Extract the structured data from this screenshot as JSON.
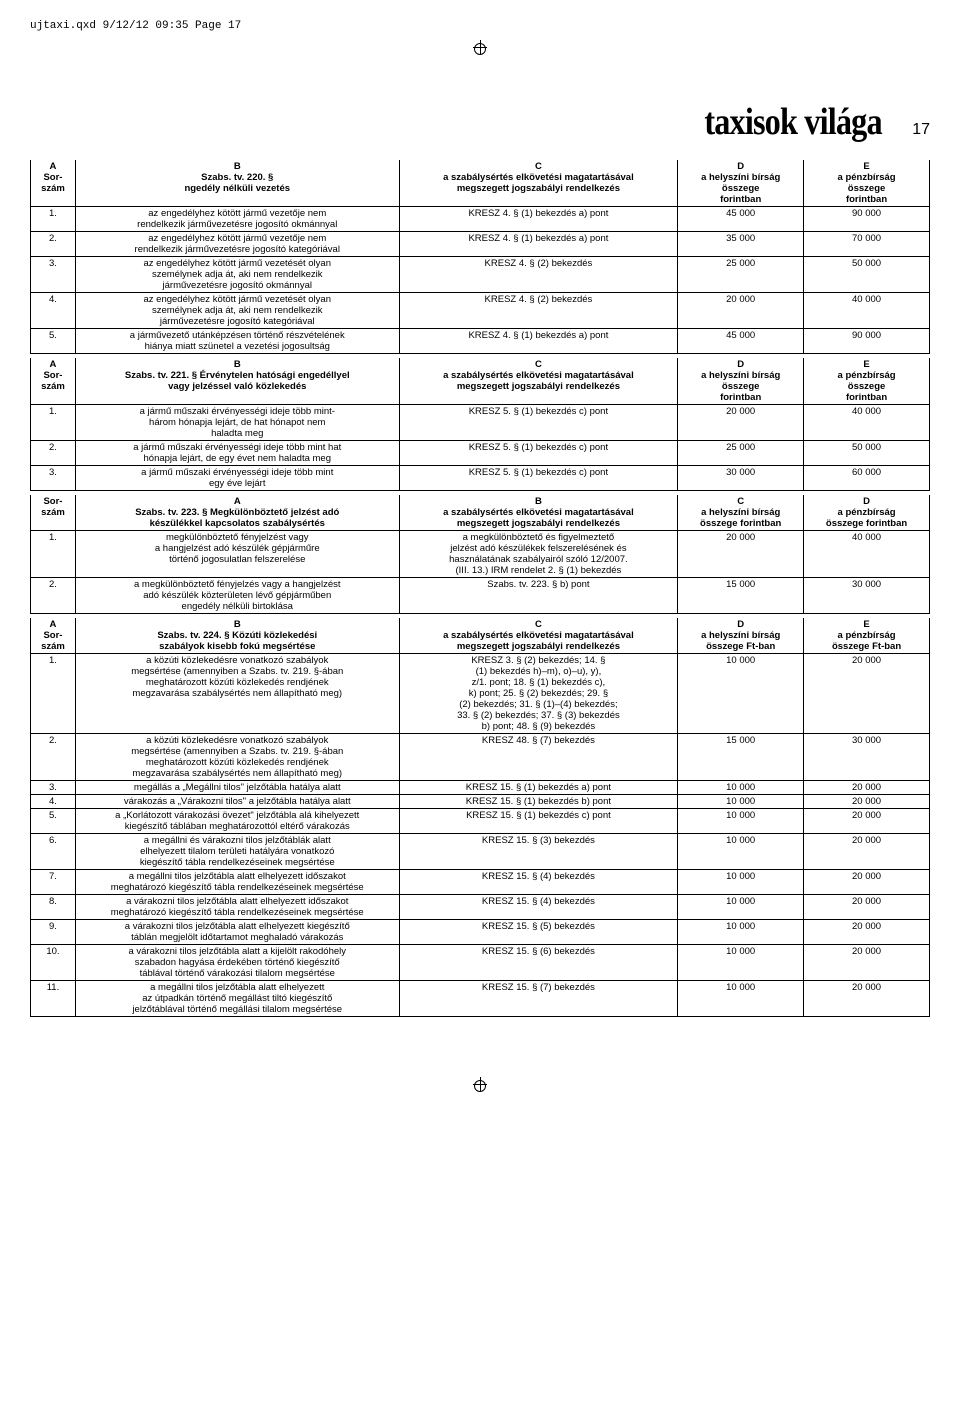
{
  "file_header": "ujtaxi.qxd  9/12/12 09:35  Page 17",
  "magazine_title": "taxisok világa",
  "page_number": "17",
  "table1": {
    "headers": {
      "A": "A\nSor-\nszám",
      "B": "B\nSzabs. tv. 220. §\nngedély nélküli vezetés",
      "C": "C\na szabálysértés elkövetési magatartásával\nmegszegett jogszabályi rendelkezés",
      "D": "D\na helyszíni bírság\nösszege\nforintban",
      "E": "E\na pénzbírság\nösszege\nforintban"
    },
    "rows": [
      {
        "n": "1.",
        "b": "az engedélyhez kötött jármű vezetője nem\nrendelkezik járművezetésre jogosító okmánnyal",
        "c": "KRESZ 4. § (1) bekezdés a) pont",
        "d": "45 000",
        "e": "90 000"
      },
      {
        "n": "2.",
        "b": "az engedélyhez kötött jármű vezetője nem\nrendelkezik járművezetésre jogosító kategóriával",
        "c": "KRESZ 4. § (1) bekezdés a) pont",
        "d": "35 000",
        "e": "70 000"
      },
      {
        "n": "3.",
        "b": "az engedélyhez kötött jármű vezetését olyan\nszemélynek adja át, aki nem rendelkezik\njárművezetésre jogosító okmánnyal",
        "c": "KRESZ 4. § (2) bekezdés",
        "d": "25 000",
        "e": "50 000"
      },
      {
        "n": "4.",
        "b": "az engedélyhez kötött jármű vezetését olyan\nszemélynek adja át, aki nem rendelkezik\njárművezetésre jogosító kategóriával",
        "c": "KRESZ 4. § (2) bekezdés",
        "d": "20 000",
        "e": "40 000"
      },
      {
        "n": "5.",
        "b": "a járművezető utánképzésen történő részvételének\nhiánya miatt szünetel a vezetési jogosultság",
        "c": "KRESZ 4. § (1) bekezdés a) pont",
        "d": "45 000",
        "e": "90 000"
      }
    ]
  },
  "table2": {
    "headers": {
      "A": "A\nSor-\nszám",
      "B": "B\nSzabs. tv. 221. § Érvénytelen hatósági engedéllyel\nvagy jelzéssel való közlekedés",
      "C": "C\na szabálysértés elkövetési magatartásával\nmegszegett jogszabályi rendelkezés",
      "D": "D\na helyszíni bírság\nösszege\nforintban",
      "E": "E\na pénzbírság\nösszege\nforintban"
    },
    "rows": [
      {
        "n": "1.",
        "b": "a jármű műszaki érvényességi ideje több mint-\nhárom hónapja lejárt, de hat hónapot nem\nhaladta meg",
        "c": "KRESZ 5. § (1) bekezdés c) pont",
        "d": "20 000",
        "e": "40 000"
      },
      {
        "n": "2.",
        "b": "a jármű műszaki érvényességi ideje több mint hat\nhónapja lejárt, de egy évet nem haladta meg",
        "c": "KRESZ 5. § (1) bekezdés c) pont",
        "d": "25 000",
        "e": "50 000"
      },
      {
        "n": "3.",
        "b": "a jármű műszaki érvényességi ideje több mint\negy éve lejárt",
        "c": "KRESZ 5. § (1) bekezdés c) pont",
        "d": "30 000",
        "e": "60 000"
      }
    ]
  },
  "table3": {
    "headers": {
      "A": "Sor-\nszám",
      "B": "A\nSzabs. tv. 223. § Megkülönböztető jelzést adó\nkészülékkel kapcsolatos szabálysértés",
      "C": "B\na szabálysértés elkövetési magatartásával\nmegszegett jogszabályi rendelkezés",
      "D": "C\na helyszíni bírság\nösszege forintban",
      "E": "D\na pénzbírság\nösszege forintban"
    },
    "rows": [
      {
        "n": "1.",
        "b": "megkülönböztető fényjelzést vagy\na hangjelzést adó készülék gépjárműre\ntörténő jogosulatlan felszerelése",
        "c": "a megkülönböztető és figyelmeztető\njelzést adó készülékek felszerelésének és\nhasználatának szabályairól szóló 12/2007.\n(III. 13.) IRM rendelet 2. § (1) bekezdés",
        "d": "20 000",
        "e": "40 000"
      },
      {
        "n": "2.",
        "b": "a megkülönböztető fényjelzés vagy a hangjelzést\nadó készülék közterületen lévő gépjárműben\nengedély nélküli birtoklása",
        "c": "Szabs. tv. 223. § b) pont",
        "d": "15 000",
        "e": "30 000"
      }
    ]
  },
  "table4": {
    "headers": {
      "A": "A\nSor-\nszám",
      "B": "B\nSzabs. tv. 224. § Közúti közlekedési\nszabályok kisebb fokú megsértése",
      "C": "C\na szabálysértés elkövetési magatartásával\nmegszegett jogszabályi rendelkezés",
      "D": "D\na helyszíni bírság\nösszege Ft-ban",
      "E": "E\na pénzbírság\nösszege Ft-ban"
    },
    "rows": [
      {
        "n": "1.",
        "b": "a közúti közlekedésre vonatkozó szabályok\nmegsértése (amennyiben a Szabs. tv.  219. §-ában\nmeghatározott közúti közlekedés rendjének\nmegzavarása szabálysértés nem állapítható meg)",
        "c": "KRESZ 3. § (2) bekezdés; 14. §\n(1) bekezdés h)–m), o)–u), y),\nz/1. pont; 18. § (1) bekezdés c),\nk) pont; 25. § (2) bekezdés; 29. §\n(2) bekezdés; 31. § (1)–(4) bekezdés;\n33. § (2) bekezdés; 37. § (3) bekezdés\nb) pont; 48. § (9) bekezdés",
        "d": "10 000",
        "e": "20 000"
      },
      {
        "n": "2.",
        "b": "a közúti közlekedésre vonatkozó szabályok\nmegsértése (amennyiben a Szabs. tv. 219. §-ában\nmeghatározott közúti közlekedés rendjének\nmegzavarása szabálysértés nem állapítható meg)",
        "c": "KRESZ 48. § (7) bekezdés",
        "d": "15 000",
        "e": "30 000"
      },
      {
        "n": "3.",
        "b": "megállás a „Megállni tilos\" jelzőtábla hatálya alatt",
        "c": "KRESZ 15. § (1) bekezdés a) pont",
        "d": "10 000",
        "e": "20 000"
      },
      {
        "n": "4.",
        "b": "várakozás a „Várakozni tilos\" a jelzőtábla hatálya alatt",
        "c": "KRESZ 15. § (1) bekezdés b) pont",
        "d": "10 000",
        "e": "20 000"
      },
      {
        "n": "5.",
        "b": "a „Korlátozott várakozási övezet\" jelzőtábla alá kihelyezett\nkiegészítő táblában meghatározottól eltérő várakozás",
        "c": "KRESZ 15. § (1) bekezdés c) pont",
        "d": "10 000",
        "e": "20 000"
      },
      {
        "n": "6.",
        "b": "a megállni és várakozni tilos jelzőtáblák alatt\nelhelyezett tilalom területi hatályára vonatkozó\nkiegészítő tábla rendelkezéseinek megsértése",
        "c": "KRESZ 15. § (3) bekezdés",
        "d": "10 000",
        "e": "20 000"
      },
      {
        "n": "7.",
        "b": "a megállni tilos jelzőtábla alatt elhelyezett időszakot\nmeghatározó kiegészítő tábla rendelkezéseinek megsértése",
        "c": "KRESZ 15. § (4) bekezdés",
        "d": "10 000",
        "e": "20 000"
      },
      {
        "n": "8.",
        "b": "a várakozni tilos jelzőtábla alatt elhelyezett időszakot\nmeghatározó kiegészítő tábla rendelkezéseinek megsértése",
        "c": "KRESZ 15. § (4) bekezdés",
        "d": "10 000",
        "e": "20 000"
      },
      {
        "n": "9.",
        "b": "a várakozni tilos jelzőtábla alatt elhelyezett kiegészítő\ntáblán megjelölt időtartamot meghaladó várakozás",
        "c": "KRESZ 15. § (5) bekezdés",
        "d": "10 000",
        "e": "20 000"
      },
      {
        "n": "10.",
        "b": "a várakozni tilos jelzőtábla alatt a kijelölt rakodóhely\nszabadon hagyása érdekében történő kiegészítő\ntáblával történő várakozási tilalom megsértése",
        "c": "KRESZ 15. § (6) bekezdés",
        "d": "10 000",
        "e": "20 000"
      },
      {
        "n": "11.",
        "b": "a megállni tilos jelzőtábla alatt elhelyezett\naz útpadkán történő megállást tiltó kiegészítő\njelzőtáblával történő megállási tilalom megsértése",
        "c": "KRESZ 15. § (7) bekezdés",
        "d": "10 000",
        "e": "20 000"
      }
    ]
  }
}
